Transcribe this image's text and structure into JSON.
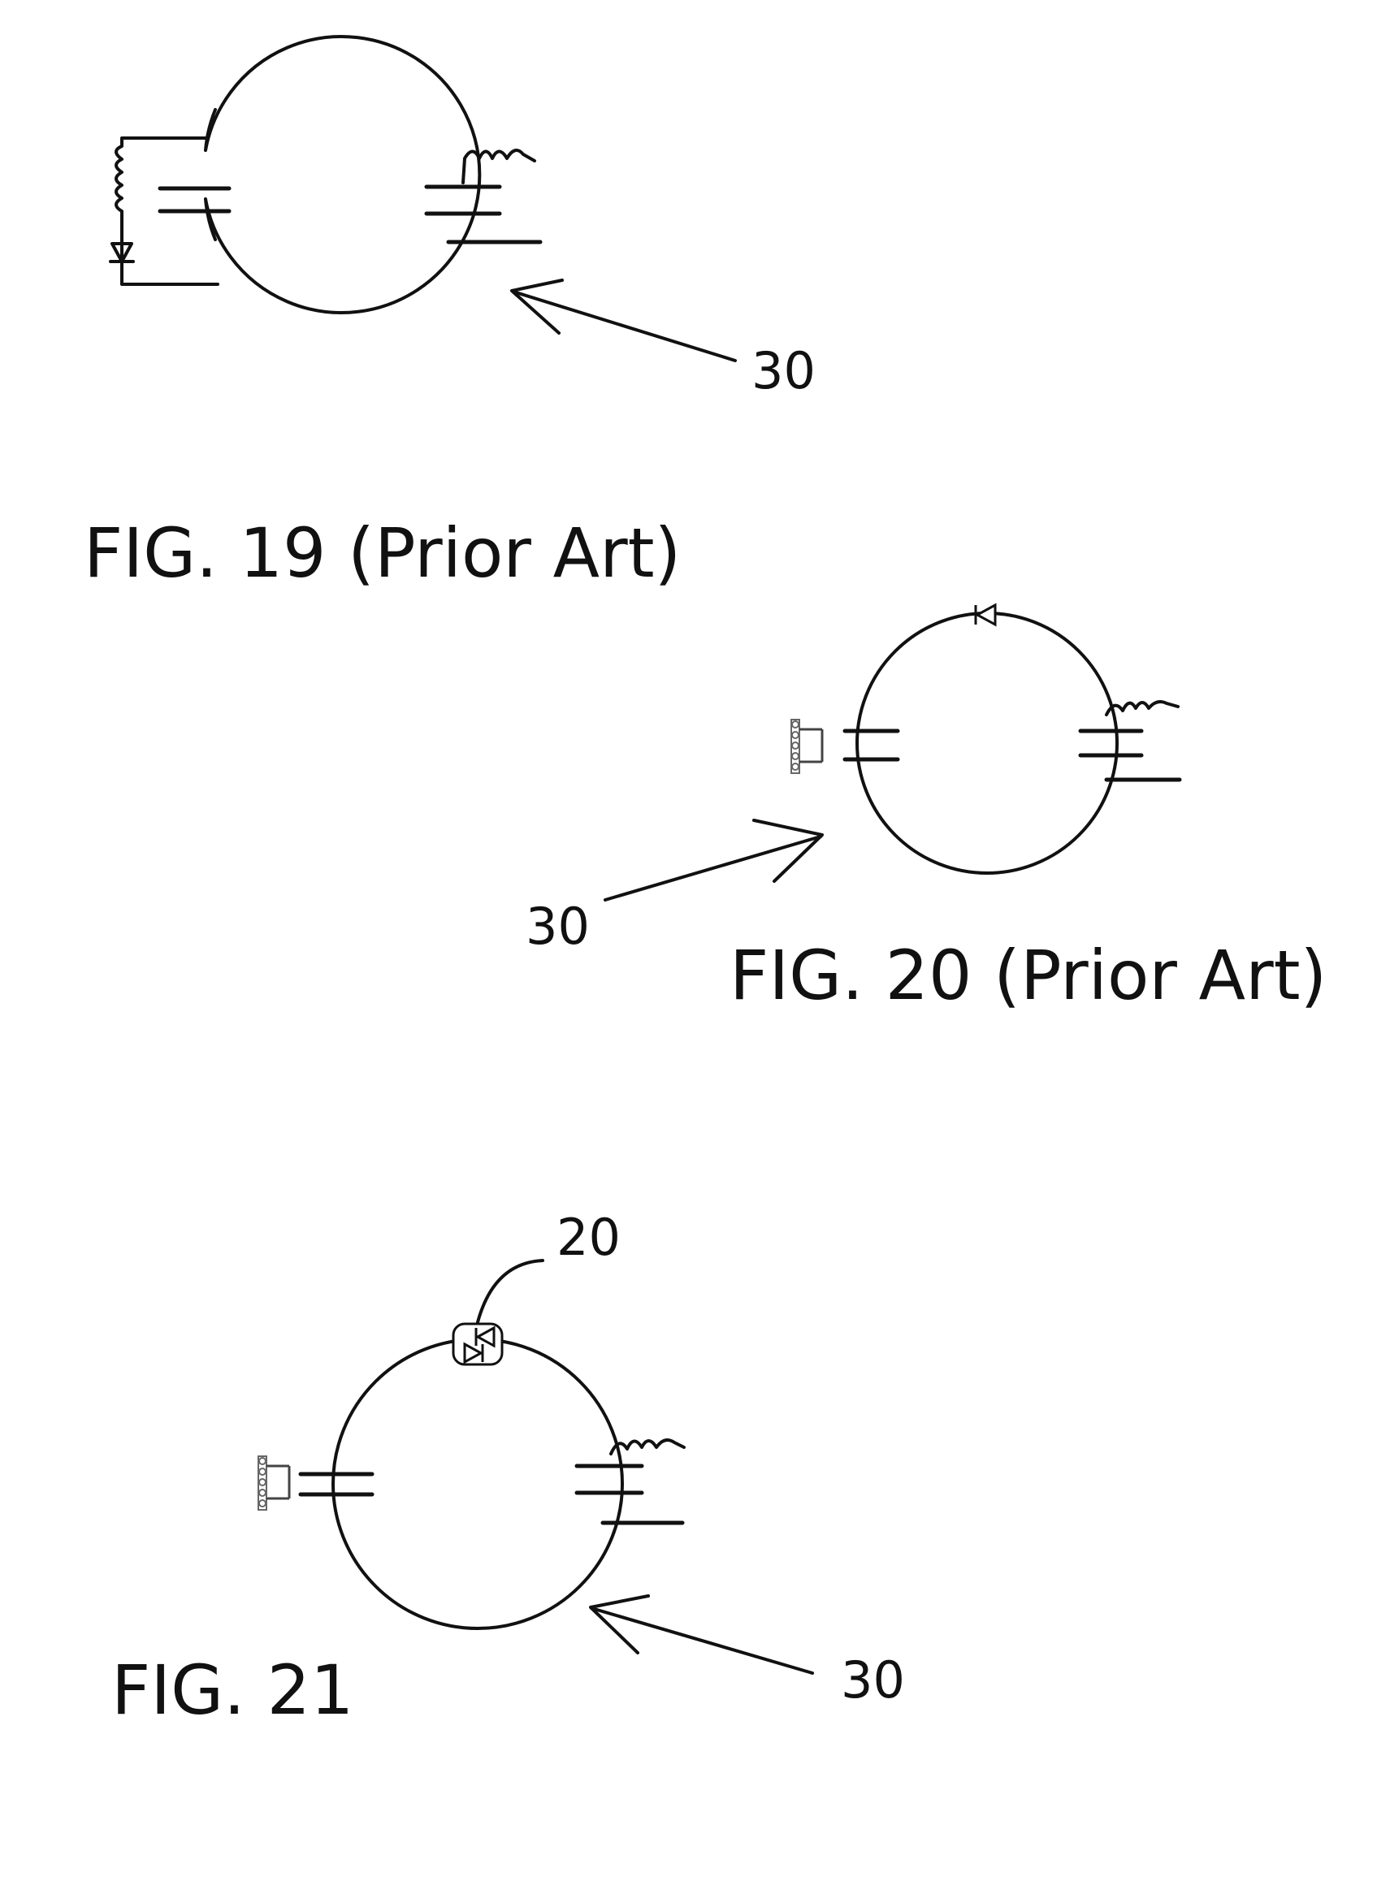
{
  "figures": [
    {
      "caption": "FIG. 19 (Prior Art)",
      "ref_label": "30"
    },
    {
      "caption": "FIG. 20 (Prior Art)",
      "ref_label": "30"
    },
    {
      "caption": "FIG. 21",
      "ref_label": "30",
      "diode_label": "20"
    }
  ]
}
